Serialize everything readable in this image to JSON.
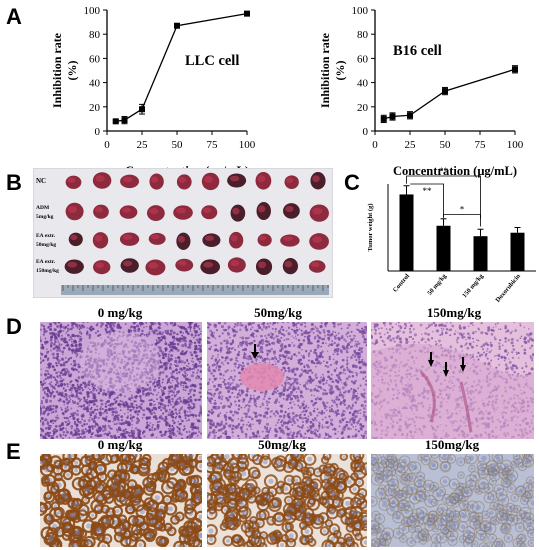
{
  "panels": {
    "a": "A",
    "b": "B",
    "c": "C",
    "d": "D",
    "e": "E"
  },
  "chart_data": [
    {
      "type": "line",
      "panel": "A-left",
      "annotation": "LLC cell",
      "xlabel": "Concentration (μg/mL)",
      "ylabel": "Inhibition rate\n(%)",
      "xlim": [
        0,
        100
      ],
      "ylim": [
        0,
        100
      ],
      "xticks": [
        0,
        25,
        50,
        75,
        100
      ],
      "yticks": [
        0,
        20,
        40,
        60,
        80,
        100
      ],
      "x": [
        6.25,
        12.5,
        25,
        50,
        100
      ],
      "y": [
        8,
        9,
        18,
        87,
        97
      ],
      "err": [
        1,
        3,
        4,
        1,
        1.5
      ]
    },
    {
      "type": "line",
      "panel": "A-right",
      "annotation": "B16 cell",
      "xlabel": "Concentration (μg/mL)",
      "ylabel": "Inhibition rate\n(%)",
      "xlim": [
        0,
        100
      ],
      "ylim": [
        0,
        100
      ],
      "xticks": [
        0,
        25,
        50,
        75,
        100
      ],
      "yticks": [
        0,
        20,
        40,
        60,
        80,
        100
      ],
      "x": [
        6.25,
        12.5,
        25,
        50,
        100
      ],
      "y": [
        10,
        12,
        13,
        33,
        51
      ],
      "err": [
        3,
        3,
        3,
        3,
        3
      ]
    },
    {
      "type": "bar",
      "panel": "C",
      "ylabel": "Tumor weight (g)",
      "categories": [
        "Control",
        "50 mg/kg",
        "150 mg/kg",
        "Doxorubicin"
      ],
      "values": [
        2.2,
        1.3,
        1.0,
        1.1
      ],
      "err": [
        0.25,
        0.2,
        0.2,
        0.15
      ],
      "ylim": [
        0,
        2.5
      ],
      "significance": [
        "**",
        "**",
        "*"
      ]
    }
  ],
  "photo_b": {
    "row_labels": [
      "NC",
      "ADM\n5mg/kg",
      "EA extr.\n50mg/kg",
      "EA extr.\n150mg/kg"
    ]
  },
  "histology_d": {
    "labels": [
      "0 mg/kg",
      "50mg/kg",
      "150mg/kg"
    ]
  },
  "histology_e": {
    "labels": [
      "0 mg/kg",
      "50mg/kg",
      "150mg/kg"
    ]
  }
}
